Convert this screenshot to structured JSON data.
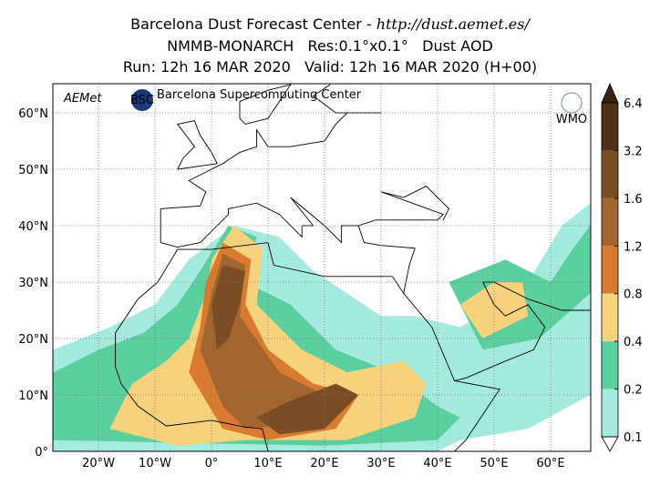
{
  "header": {
    "title": "Barcelona Dust Forecast Center - ",
    "url": "http://dust.aemet.es/",
    "line2": "NMMB-MONARCH   Res:0.1°x0.1°   Dust AOD",
    "line3": "Run: 12h 16 MAR 2020   Valid: 12h 16 MAR 2020 (H+00)"
  },
  "map": {
    "lat_labels": [
      "0°",
      "10°N",
      "20°N",
      "30°N",
      "40°N",
      "50°N",
      "60°N"
    ],
    "lon_labels": [
      "20°W",
      "10°W",
      "0°",
      "10°E",
      "20°E",
      "30°E",
      "40°E",
      "50°E",
      "60°E"
    ]
  },
  "logos": {
    "aemet": "AEMet",
    "bsc": "BSC",
    "bsc_name": "Barcelona Supercomputing Center",
    "wmo": "WMO"
  },
  "colorbar": {
    "labels": [
      "6.4",
      "3.2",
      "1.6",
      "1.2",
      "0.8",
      "0.4",
      "0.2",
      "0.1"
    ],
    "colors": [
      "#3a2210",
      "#4f3018",
      "#7b4d24",
      "#a3652e",
      "#d87a30",
      "#f6d27c",
      "#5ccf9e",
      "#a4eadf",
      "#ffffff"
    ]
  }
}
